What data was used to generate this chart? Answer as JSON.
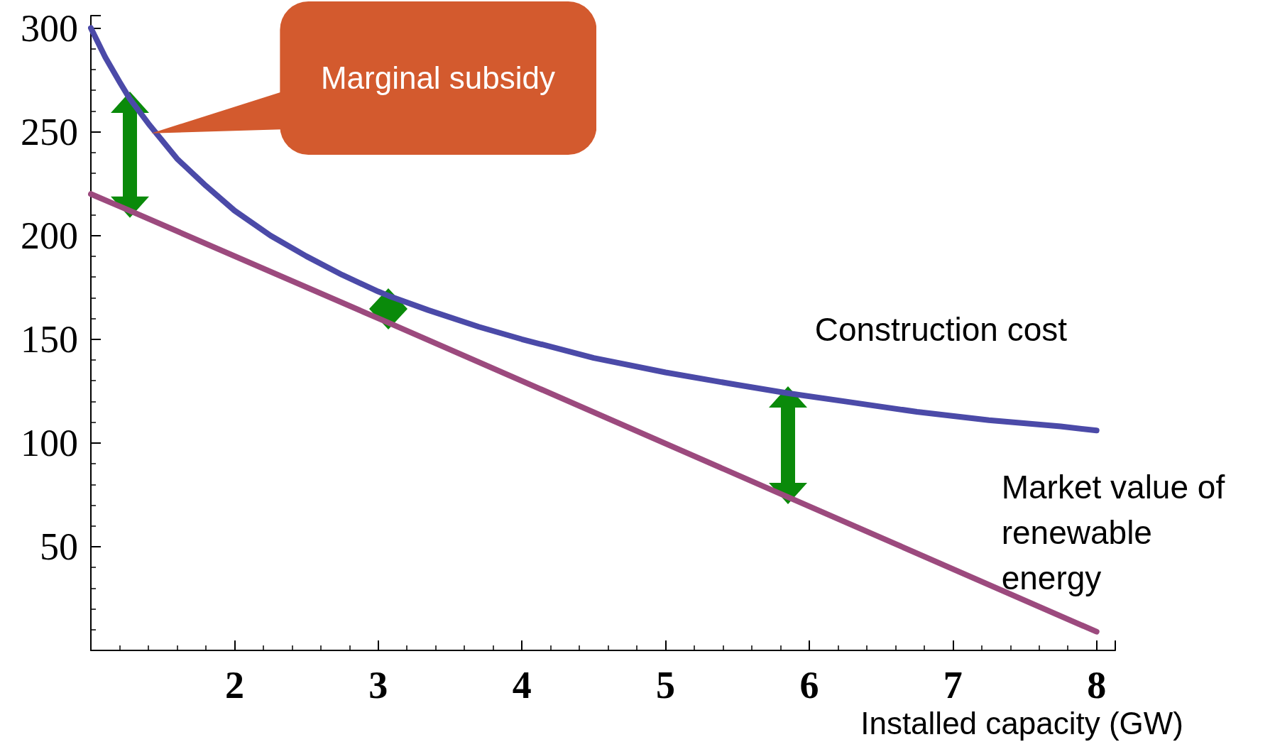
{
  "chart_data": {
    "type": "line",
    "xlabel": "Installed capacity (GW)",
    "xlim": [
      1,
      8.13
    ],
    "ylim": [
      0,
      306
    ],
    "xticks": [
      2,
      3,
      4,
      5,
      6,
      7,
      8
    ],
    "yticks": [
      50,
      100,
      150,
      200,
      250,
      300
    ],
    "grid": false,
    "legend": false,
    "marker": "none",
    "line_style": "solid",
    "annotations": [
      "Marginal subsidy"
    ],
    "series": [
      {
        "name": "Construction cost",
        "color": "#4b4aa8",
        "x": [
          1,
          1.1,
          1.2,
          1.27,
          1.4,
          1.6,
          1.8,
          2,
          2.25,
          2.5,
          2.75,
          3,
          3.07,
          3.35,
          3.7,
          4,
          4.5,
          5,
          5.5,
          5.85,
          6.25,
          6.75,
          7.25,
          7.75,
          8
        ],
        "values": [
          300,
          286,
          274,
          266,
          254,
          237,
          224,
          212,
          200,
          190,
          181,
          173,
          171,
          164,
          156,
          150,
          141,
          134,
          128,
          124,
          120,
          115,
          111,
          108,
          106
        ]
      },
      {
        "name": "Market value of renewable energy",
        "color": "#9c4a7e",
        "x": [
          1,
          1.27,
          3.07,
          5.85,
          8
        ],
        "values": [
          220,
          212,
          158,
          74,
          9
        ]
      }
    ]
  }
}
